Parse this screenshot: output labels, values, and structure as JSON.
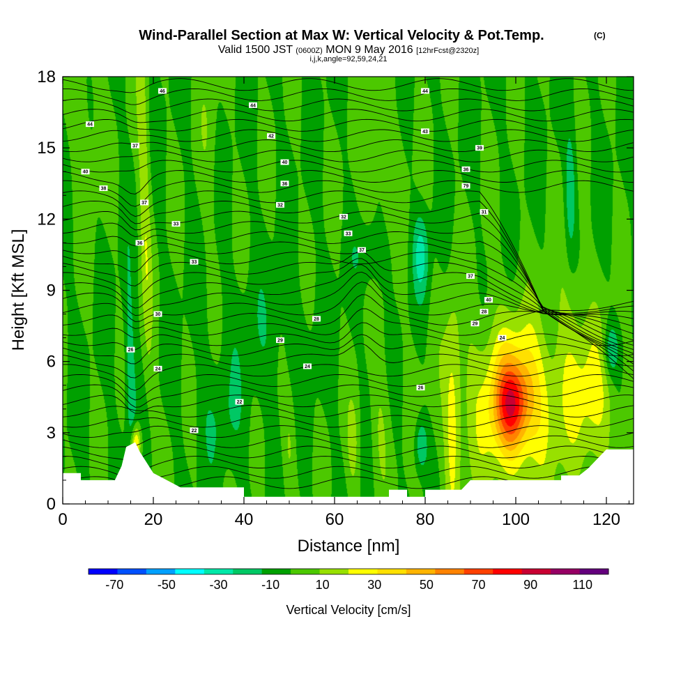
{
  "chart_data": {
    "type": "heatmap",
    "title": "Wind-Parallel Section at Max W: Vertical Velocity & Pot.Temp.",
    "title_badge": "(C)",
    "subtitle_main_a": "Valid 1500 JST",
    "subtitle_small_a": "(0600Z)",
    "subtitle_main_b": "MON 9 May 2016",
    "subtitle_small_b": "[12hrFcst@2320z]",
    "subtitle2": "i,j,k,angle=92,59,24,21",
    "xlabel": "Distance [nm]",
    "ylabel": "Height [Kft MSL]",
    "xlim": [
      0,
      126
    ],
    "ylim": [
      0,
      18
    ],
    "x_ticks": [
      0,
      20,
      40,
      60,
      80,
      100,
      120
    ],
    "y_ticks": [
      0,
      3,
      6,
      9,
      12,
      15,
      18
    ],
    "colorbar": {
      "label": "Vertical Velocity [cm/s]",
      "tick_labels": [
        -70,
        -50,
        -30,
        -10,
        10,
        30,
        50,
        70,
        90,
        110
      ],
      "range": [
        -80,
        120
      ],
      "colors": [
        "#0000ff",
        "#0050ff",
        "#00a0ff",
        "#00ffff",
        "#00e8a8",
        "#00c864",
        "#00a000",
        "#4cc800",
        "#98e000",
        "#ffff00",
        "#ffe000",
        "#ffb400",
        "#ff8200",
        "#ff4000",
        "#ff0000",
        "#c80032",
        "#960064",
        "#64007d"
      ]
    },
    "terrain": [
      [
        0,
        1.3
      ],
      [
        4,
        1.3
      ],
      [
        4,
        1.0
      ],
      [
        11.5,
        1.0
      ],
      [
        13,
        1.6
      ],
      [
        14,
        2.4
      ],
      [
        16,
        2.6
      ],
      [
        17,
        2.2
      ],
      [
        18,
        1.9
      ],
      [
        19,
        1.6
      ],
      [
        20,
        1.3
      ],
      [
        22,
        1.1
      ],
      [
        24,
        0.9
      ],
      [
        26,
        0.7
      ],
      [
        40,
        0.7
      ],
      [
        40,
        0.3
      ],
      [
        72,
        0.3
      ],
      [
        72,
        0.6
      ],
      [
        76,
        0.6
      ],
      [
        76,
        0.3
      ],
      [
        80,
        0.3
      ],
      [
        80,
        0.6
      ],
      [
        88,
        0.6
      ],
      [
        90,
        1.0
      ],
      [
        110,
        1.0
      ],
      [
        110,
        1.2
      ],
      [
        114,
        1.2
      ],
      [
        116,
        1.5
      ],
      [
        118,
        1.9
      ],
      [
        120,
        2.3
      ],
      [
        126,
        2.3
      ]
    ],
    "w_field": [
      {
        "x": 18,
        "y": 13.0,
        "sx": 0.9,
        "sy": 6.0,
        "w": 20,
        "tilt": -0.12
      },
      {
        "x": 15,
        "y": 4.5,
        "sx": 0.8,
        "sy": 3.5,
        "w": -22,
        "tilt": -0.12
      },
      {
        "x": 16,
        "y": 2.5,
        "sx": 0.8,
        "sy": 0.6,
        "w": 45
      },
      {
        "x": 99,
        "y": 4.2,
        "sx": 2.5,
        "sy": 1.2,
        "w": 45
      },
      {
        "x": 100,
        "y": 4.5,
        "sx": 5.0,
        "sy": 2.0,
        "w": 30
      },
      {
        "x": 100,
        "y": 4.0,
        "sx": 11.0,
        "sy": 3.2,
        "w": 18
      },
      {
        "x": 117,
        "y": 4.5,
        "sx": 3.5,
        "sy": 2.2,
        "w": 22
      },
      {
        "x": 86,
        "y": 3.5,
        "sx": 1.2,
        "sy": 3.5,
        "w": 22
      },
      {
        "x": 70,
        "y": 3.0,
        "sx": 1.5,
        "sy": 2.0,
        "w": 12
      },
      {
        "x": 64,
        "y": 2.5,
        "sx": 1.0,
        "sy": 1.5,
        "w": 15
      },
      {
        "x": 50,
        "y": 2.5,
        "sx": 1.0,
        "sy": 1.5,
        "w": 12
      },
      {
        "x": 79,
        "y": 2.5,
        "sx": 1.0,
        "sy": 0.8,
        "w": -25
      },
      {
        "x": 79,
        "y": 10.5,
        "sx": 1.2,
        "sy": 1.2,
        "w": -25
      },
      {
        "x": 68,
        "y": 10.5,
        "sx": 3.0,
        "sy": 1.0,
        "w": -12
      },
      {
        "x": 112,
        "y": 13.0,
        "sx": 0.9,
        "sy": 2.0,
        "w": -22
      },
      {
        "x": 121,
        "y": 6.5,
        "sx": 1.2,
        "sy": 0.8,
        "w": -25
      },
      {
        "x": 112,
        "y": 9.0,
        "sx": 2.0,
        "sy": 3.0,
        "w": 10
      },
      {
        "x": 5,
        "y": 16.0,
        "sx": 2.5,
        "sy": 3.0,
        "w": 8
      },
      {
        "x": 32,
        "y": 16.0,
        "sx": 1.5,
        "sy": 3.0,
        "w": 8
      },
      {
        "x": 70,
        "y": 14.0,
        "sx": 4.0,
        "sy": 3.0,
        "w": 8
      },
      {
        "x": 45,
        "y": 7.0,
        "sx": 8.0,
        "sy": 2.0,
        "w": -6
      },
      {
        "x": 35,
        "y": 3.5,
        "sx": 4.0,
        "sy": 1.5,
        "w": -8
      }
    ],
    "w_background": -3,
    "isentrope_labels": [
      {
        "x": 22,
        "y": 17.4,
        "text": "46"
      },
      {
        "x": 42,
        "y": 16.8,
        "text": "44"
      },
      {
        "x": 80,
        "y": 17.4,
        "text": "44"
      },
      {
        "x": 6,
        "y": 16.0,
        "text": "44"
      },
      {
        "x": 46,
        "y": 15.5,
        "text": "42"
      },
      {
        "x": 80,
        "y": 15.7,
        "text": "43"
      },
      {
        "x": 16,
        "y": 15.1,
        "text": "37"
      },
      {
        "x": 92,
        "y": 15.0,
        "text": "39"
      },
      {
        "x": 5,
        "y": 14.0,
        "text": "40"
      },
      {
        "x": 49,
        "y": 14.4,
        "text": "40"
      },
      {
        "x": 89,
        "y": 14.1,
        "text": "36"
      },
      {
        "x": 9,
        "y": 13.3,
        "text": "38"
      },
      {
        "x": 49,
        "y": 13.5,
        "text": "36"
      },
      {
        "x": 89,
        "y": 13.4,
        "text": "79"
      },
      {
        "x": 18,
        "y": 12.7,
        "text": "37"
      },
      {
        "x": 48,
        "y": 12.6,
        "text": "32"
      },
      {
        "x": 62,
        "y": 12.1,
        "text": "32"
      },
      {
        "x": 93,
        "y": 12.3,
        "text": "31"
      },
      {
        "x": 25,
        "y": 11.8,
        "text": "33"
      },
      {
        "x": 63,
        "y": 11.4,
        "text": "33"
      },
      {
        "x": 17,
        "y": 11.0,
        "text": "36"
      },
      {
        "x": 66,
        "y": 10.7,
        "text": "37"
      },
      {
        "x": 29,
        "y": 10.2,
        "text": "33"
      },
      {
        "x": 90,
        "y": 9.6,
        "text": "37"
      },
      {
        "x": 94,
        "y": 8.6,
        "text": "40"
      },
      {
        "x": 93,
        "y": 8.1,
        "text": "28"
      },
      {
        "x": 21,
        "y": 8.0,
        "text": "30"
      },
      {
        "x": 56,
        "y": 7.8,
        "text": "28"
      },
      {
        "x": 91,
        "y": 7.6,
        "text": "29"
      },
      {
        "x": 97,
        "y": 7.0,
        "text": "24"
      },
      {
        "x": 48,
        "y": 6.9,
        "text": "29"
      },
      {
        "x": 15,
        "y": 6.5,
        "text": "26"
      },
      {
        "x": 54,
        "y": 5.8,
        "text": "24"
      },
      {
        "x": 21,
        "y": 5.7,
        "text": "24"
      },
      {
        "x": 79,
        "y": 4.9,
        "text": "26"
      },
      {
        "x": 39,
        "y": 4.3,
        "text": "22"
      },
      {
        "x": 29,
        "y": 3.1,
        "text": "22"
      }
    ]
  }
}
